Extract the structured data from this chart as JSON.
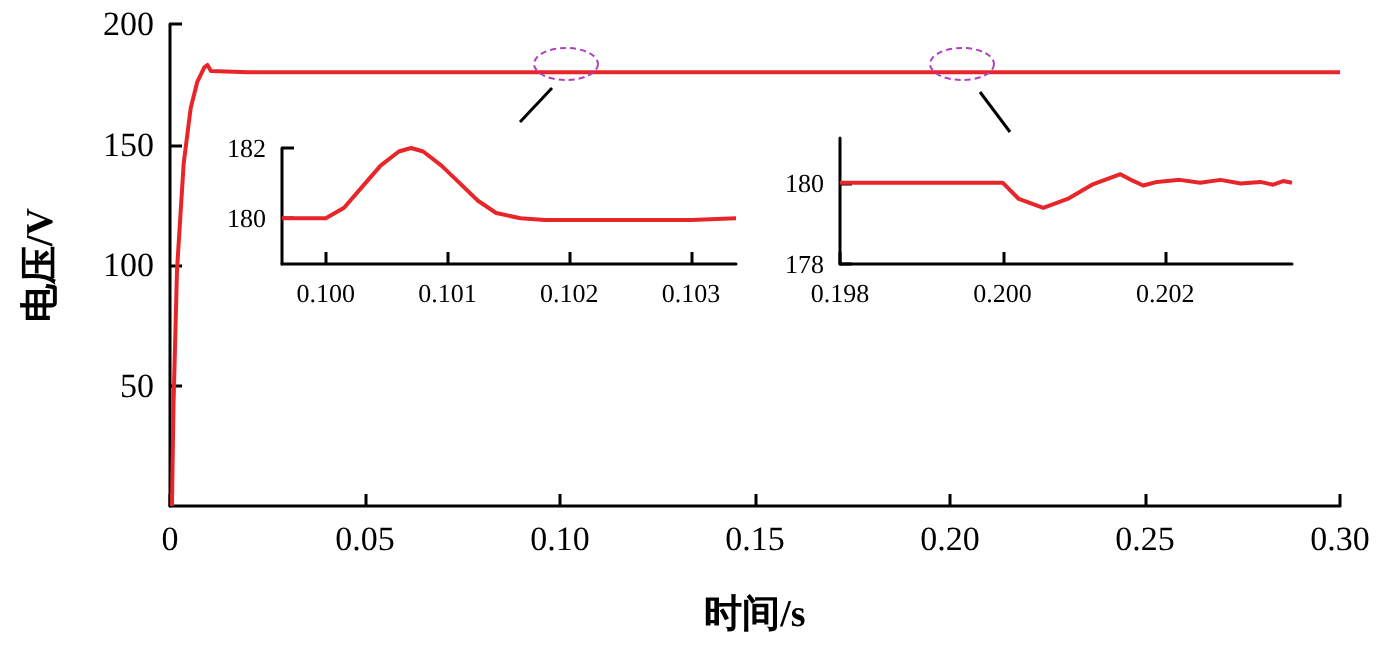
{
  "chart_data": [
    {
      "type": "line",
      "xlabel": "时间/s",
      "ylabel": "电压/V",
      "xlim": [
        0,
        0.3
      ],
      "ylim": [
        0,
        200
      ],
      "marker": "none",
      "xticks": [
        0,
        {
          "value": 0.05,
          "label": "0.05"
        },
        {
          "value": 0.1,
          "label": "0.10"
        },
        {
          "value": 0.15,
          "label": "0.15"
        },
        {
          "value": 0.2,
          "label": "0.20"
        },
        {
          "value": 0.25,
          "label": "0.25"
        },
        {
          "value": 0.3,
          "label": "0.30"
        }
      ],
      "yticks": [
        50,
        100,
        150,
        200
      ],
      "series": [
        {
          "color": "#e8262a",
          "x": [
            0.0005,
            0.0009,
            0.0018,
            0.0035,
            0.0053,
            0.007,
            0.0088,
            0.0096,
            0.0105,
            0.02,
            0.1,
            0.2,
            0.3
          ],
          "values": [
            0,
            42,
            98,
            142,
            165,
            176,
            182,
            183,
            180.5,
            180,
            180,
            180,
            180
          ]
        }
      ]
    },
    {
      "type": "line",
      "xlim": [
        0.09964,
        0.10337
      ],
      "ylim": [
        178.7,
        182
      ],
      "marker": "none",
      "xticks": [
        {
          "value": 0.1,
          "label": "0.100"
        },
        {
          "value": 0.101,
          "label": "0.101"
        },
        {
          "value": 0.102,
          "label": "0.102"
        },
        {
          "value": 0.103,
          "label": "0.103"
        }
      ],
      "yticks": [
        180,
        182
      ],
      "series": [
        {
          "color": "#e8262a",
          "x": [
            0.09964,
            0.1,
            0.10015,
            0.1003,
            0.10045,
            0.1006,
            0.1007,
            0.1008,
            0.10095,
            0.1011,
            0.10125,
            0.1014,
            0.1016,
            0.1018,
            0.102,
            0.103,
            0.10337
          ],
          "values": [
            180,
            180,
            180.3,
            180.9,
            181.5,
            181.9,
            182,
            181.9,
            181.5,
            181,
            180.5,
            180.15,
            180,
            179.95,
            179.95,
            179.95,
            180
          ]
        }
      ]
    },
    {
      "type": "line",
      "xlim": [
        0.198,
        0.20356
      ],
      "ylim": [
        178,
        181.1
      ],
      "marker": "none",
      "xticks": [
        {
          "value": 0.198,
          "label": "0.198"
        },
        {
          "value": 0.2,
          "label": "0.200"
        },
        {
          "value": 0.202,
          "label": "0.202"
        }
      ],
      "yticks": [
        178,
        180
      ],
      "series": [
        {
          "color": "#e8262a",
          "x": [
            0.198,
            0.2,
            0.2002,
            0.2005,
            0.2008,
            0.2011,
            0.20145,
            0.2016,
            0.20173,
            0.2019,
            0.20218,
            0.20243,
            0.20268,
            0.20293,
            0.20317,
            0.20333,
            0.20345,
            0.20356
          ],
          "values": [
            180,
            180,
            179.6,
            179.38,
            179.6,
            179.95,
            180.21,
            180.05,
            179.93,
            180.02,
            180.07,
            180,
            180.07,
            179.98,
            180.02,
            179.95,
            180.04,
            180
          ]
        }
      ]
    }
  ]
}
